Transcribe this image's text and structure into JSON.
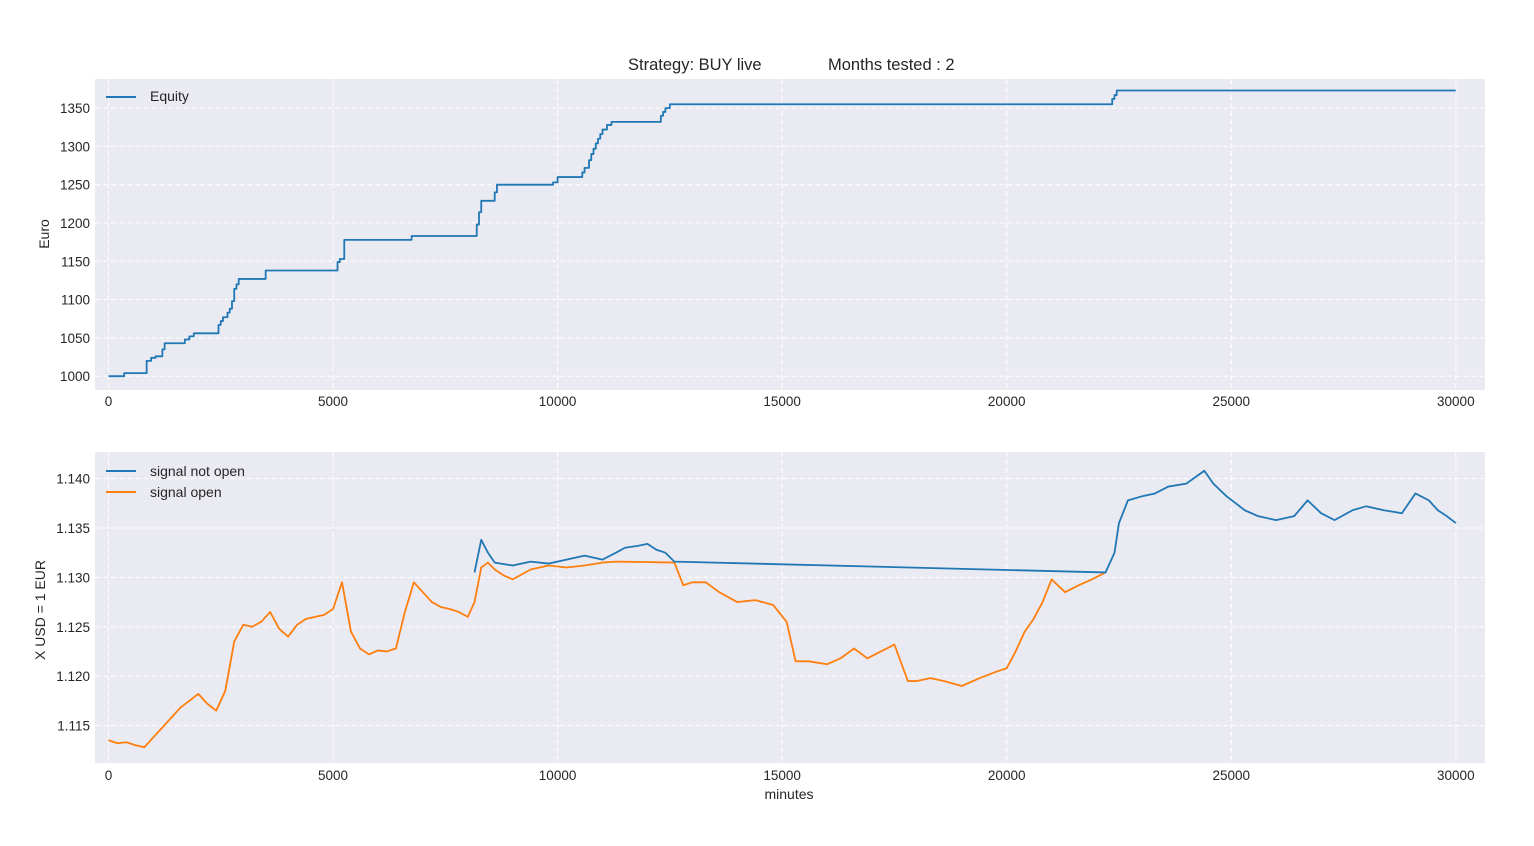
{
  "title": {
    "strategy_label": "Strategy:  BUY live",
    "months_label": "Months tested : 2"
  },
  "colors": {
    "blue": "#1f77b4",
    "orange": "#ff7f0e",
    "plot_bg": "#eaeaf2"
  },
  "chart_data": [
    {
      "type": "line",
      "title": "Strategy:  BUY live            Months tested : 2",
      "xlabel": "",
      "ylabel": "Euro",
      "xlim": [
        -300,
        30650
      ],
      "ylim": [
        982,
        1388
      ],
      "xticks": [
        0,
        5000,
        10000,
        15000,
        20000,
        25000,
        30000
      ],
      "yticks": [
        1000,
        1050,
        1100,
        1150,
        1200,
        1250,
        1300,
        1350
      ],
      "grid": true,
      "legend": "top-left",
      "series": [
        {
          "name": "Equity",
          "color": "#1f77b4",
          "step": true,
          "x": [
            0,
            350,
            850,
            950,
            1050,
            1200,
            1250,
            1700,
            1800,
            1900,
            2450,
            2500,
            2550,
            2650,
            2700,
            2750,
            2800,
            2850,
            2900,
            3500,
            5100,
            5150,
            5250,
            6750,
            8200,
            8250,
            8300,
            8600,
            8650,
            9900,
            10000,
            10550,
            10600,
            10700,
            10750,
            10800,
            10850,
            10900,
            10950,
            11000,
            11100,
            11200,
            12300,
            12350,
            12400,
            12500,
            22350,
            22400,
            22450,
            30000
          ],
          "y": [
            1000,
            1004,
            1020,
            1024,
            1026,
            1035,
            1043,
            1048,
            1052,
            1056,
            1067,
            1072,
            1077,
            1083,
            1088,
            1098,
            1114,
            1120,
            1127,
            1138,
            1149,
            1153,
            1178,
            1183,
            1198,
            1214,
            1229,
            1240,
            1250,
            1253,
            1260,
            1266,
            1272,
            1282,
            1290,
            1297,
            1304,
            1310,
            1316,
            1322,
            1328,
            1332,
            1340,
            1345,
            1350,
            1355,
            1362,
            1367,
            1373,
            1373
          ]
        }
      ]
    },
    {
      "type": "line",
      "title": "",
      "xlabel": "minutes",
      "ylabel": "X USD = 1 EUR",
      "xlim": [
        -300,
        30650
      ],
      "ylim": [
        1.1112,
        1.1427
      ],
      "xticks": [
        0,
        5000,
        10000,
        15000,
        20000,
        25000,
        30000
      ],
      "yticks": [
        1.115,
        1.12,
        1.125,
        1.13,
        1.135,
        1.14
      ],
      "grid": true,
      "legend": "top-left",
      "series": [
        {
          "name": "signal not open",
          "color": "#1f77b4",
          "x": [
            8150,
            8300,
            8450,
            8600,
            9000,
            9400,
            9800,
            10200,
            10600,
            11000,
            11300,
            11500,
            11800,
            12000,
            12200,
            12400,
            12600,
            22200,
            22400,
            22500,
            22700,
            23000,
            23300,
            23600,
            24000,
            24400,
            24600,
            24900,
            25100,
            25300,
            25600,
            26000,
            26400,
            26700,
            27000,
            27300,
            27700,
            28000,
            28400,
            28800,
            29100,
            29400,
            29600,
            29800,
            30000
          ],
          "y": [
            1.1305,
            1.1338,
            1.1325,
            1.1315,
            1.1312,
            1.1316,
            1.1314,
            1.1318,
            1.1322,
            1.1318,
            1.1325,
            1.133,
            1.1332,
            1.1334,
            1.1328,
            1.1325,
            1.1316,
            1.1305,
            1.1325,
            1.1355,
            1.1378,
            1.1382,
            1.1385,
            1.1392,
            1.1395,
            1.1408,
            1.1395,
            1.1382,
            1.1375,
            1.1368,
            1.1362,
            1.1358,
            1.1362,
            1.1378,
            1.1365,
            1.1358,
            1.1368,
            1.1372,
            1.1368,
            1.1365,
            1.1385,
            1.1378,
            1.1368,
            1.1362,
            1.1355
          ]
        },
        {
          "name": "signal open",
          "color": "#ff7f0e",
          "x": [
            0,
            200,
            400,
            600,
            800,
            1000,
            1200,
            1400,
            1600,
            1800,
            2000,
            2200,
            2400,
            2600,
            2800,
            3000,
            3200,
            3400,
            3600,
            3800,
            4000,
            4200,
            4400,
            4600,
            4800,
            5000,
            5200,
            5400,
            5600,
            5800,
            6000,
            6200,
            6400,
            6600,
            6800,
            7000,
            7200,
            7400,
            7600,
            7800,
            8000,
            8150,
            8300,
            8450,
            8600,
            8800,
            9000,
            9400,
            9800,
            10200,
            10600,
            11000,
            11300,
            12600,
            12800,
            13000,
            13300,
            13600,
            14000,
            14400,
            14800,
            15100,
            15300,
            15600,
            16000,
            16300,
            16600,
            16900,
            17200,
            17500,
            17800,
            18000,
            18300,
            18600,
            19000,
            19400,
            19800,
            20000,
            20200,
            20400,
            20600,
            20800,
            21000,
            21300,
            21600,
            21900,
            22200
          ],
          "y": [
            1.1135,
            1.1132,
            1.1133,
            1.113,
            1.1128,
            1.1138,
            1.1148,
            1.1158,
            1.1168,
            1.1175,
            1.1182,
            1.1172,
            1.1165,
            1.1185,
            1.1235,
            1.1252,
            1.125,
            1.1255,
            1.1265,
            1.1248,
            1.124,
            1.1252,
            1.1258,
            1.126,
            1.1262,
            1.1268,
            1.1295,
            1.1245,
            1.1228,
            1.1222,
            1.1226,
            1.1225,
            1.1228,
            1.1265,
            1.1295,
            1.1285,
            1.1275,
            1.127,
            1.1268,
            1.1265,
            1.126,
            1.1275,
            1.131,
            1.1315,
            1.1308,
            1.1302,
            1.1298,
            1.1308,
            1.1312,
            1.131,
            1.1312,
            1.1315,
            1.1316,
            1.1315,
            1.1292,
            1.1295,
            1.1295,
            1.1285,
            1.1275,
            1.1277,
            1.1272,
            1.1255,
            1.1215,
            1.1215,
            1.1212,
            1.1218,
            1.1228,
            1.1218,
            1.1225,
            1.1232,
            1.1195,
            1.1195,
            1.1198,
            1.1195,
            1.119,
            1.1198,
            1.1205,
            1.1208,
            1.1225,
            1.1245,
            1.1258,
            1.1275,
            1.1298,
            1.1285,
            1.1292,
            1.1298,
            1.1305
          ]
        }
      ]
    }
  ]
}
